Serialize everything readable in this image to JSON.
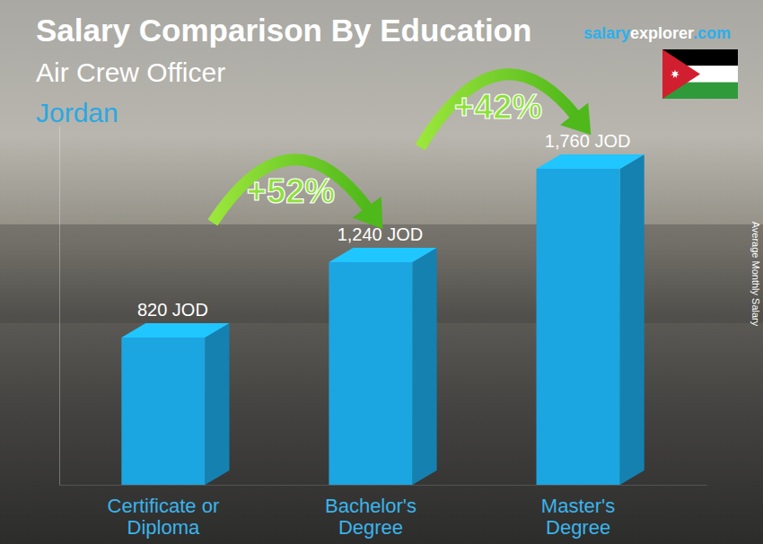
{
  "chart_data": {
    "type": "bar",
    "title": "Salary Comparison By Education",
    "subtitle": "Air Crew Officer",
    "location": "Jordan",
    "source": [
      "salary",
      "explorer",
      ".com"
    ],
    "ylabel": "Average Monthly Salary",
    "categories": [
      "Certificate or Diploma",
      "Bachelor's Degree",
      "Master's Degree"
    ],
    "values": [
      820,
      1240,
      1760
    ],
    "value_labels": [
      "820 JOD",
      "1,240 JOD",
      "1,760 JOD"
    ],
    "annotations": [
      "+52%",
      "+42%"
    ],
    "color": "#1ba6e2",
    "ylim": [
      0,
      2000
    ],
    "yticks": [],
    "data_labels": true,
    "tick_labels": "x",
    "grid": false
  }
}
